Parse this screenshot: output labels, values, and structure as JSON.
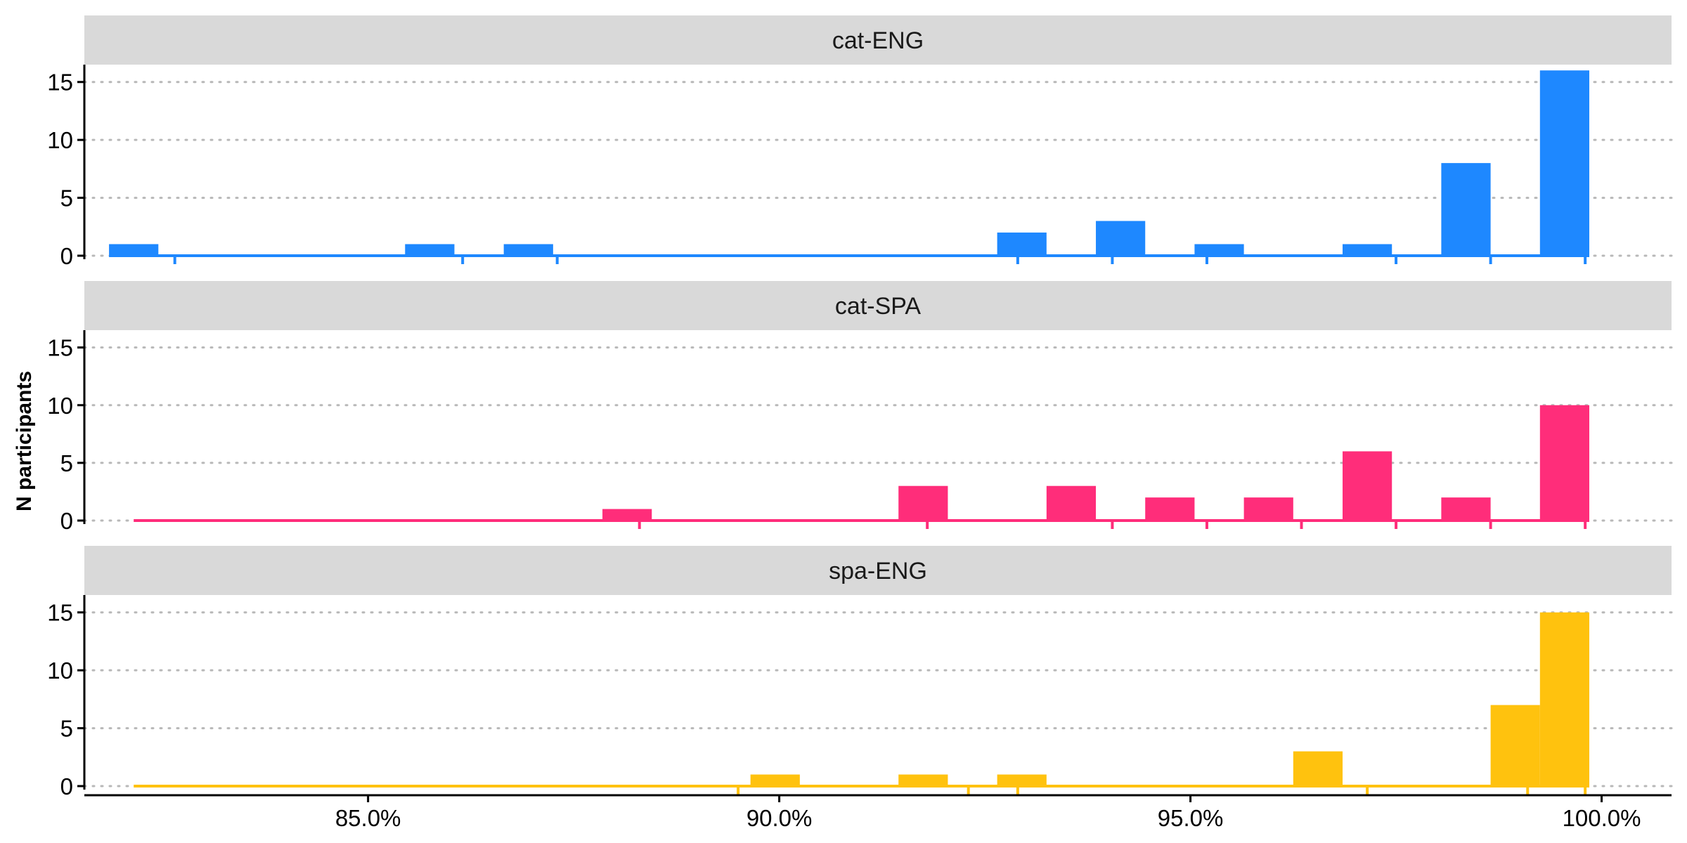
{
  "chart_data": {
    "type": "bar",
    "ylabel": "N participants",
    "xlabel": "",
    "xlim": [
      0.8155,
      1.0085
    ],
    "ylim": [
      0,
      16.5
    ],
    "y_ticks": [
      0,
      5,
      10,
      15
    ],
    "x_ticks": [
      0.85,
      0.9,
      0.95,
      1.0
    ],
    "x_tick_labels": [
      "85.0%",
      "90.0%",
      "95.0%",
      "100.0%"
    ],
    "y_tick_labels": [
      "0",
      "5",
      "10",
      "15"
    ],
    "grid": "horizontal dotted",
    "facets": [
      {
        "name": "cat-ENG",
        "color": "#1E88FF",
        "bin_width": 0.006,
        "x": [
          0.8215,
          0.8575,
          0.8695,
          0.9295,
          0.9415,
          0.9535,
          0.9715,
          0.9835,
          0.9955
        ],
        "values": [
          1,
          1,
          1,
          2,
          3,
          1,
          1,
          8,
          16
        ],
        "minor_ticks": [
          0.8265,
          0.8615,
          0.873,
          0.929,
          0.9405,
          0.952,
          0.975,
          0.9865,
          0.998
        ]
      },
      {
        "name": "cat-SPA",
        "color": "#FF2D7A",
        "bin_width": 0.006,
        "x": [
          0.8815,
          0.9175,
          0.9355,
          0.9475,
          0.9595,
          0.9715,
          0.9835,
          0.9955
        ],
        "values": [
          1,
          3,
          3,
          2,
          2,
          6,
          2,
          10
        ],
        "minor_ticks": [
          0.883,
          0.918,
          0.9405,
          0.952,
          0.9635,
          0.975,
          0.9865,
          0.998
        ]
      },
      {
        "name": "spa-ENG",
        "color": "#FFC20E",
        "bin_width": 0.006,
        "x": [
          0.8995,
          0.9175,
          0.9295,
          0.9655,
          0.9895,
          0.9955
        ],
        "values": [
          1,
          1,
          1,
          3,
          7,
          15
        ],
        "minor_ticks": [
          0.895,
          0.923,
          0.929,
          0.9715,
          0.991,
          0.998
        ]
      }
    ]
  }
}
